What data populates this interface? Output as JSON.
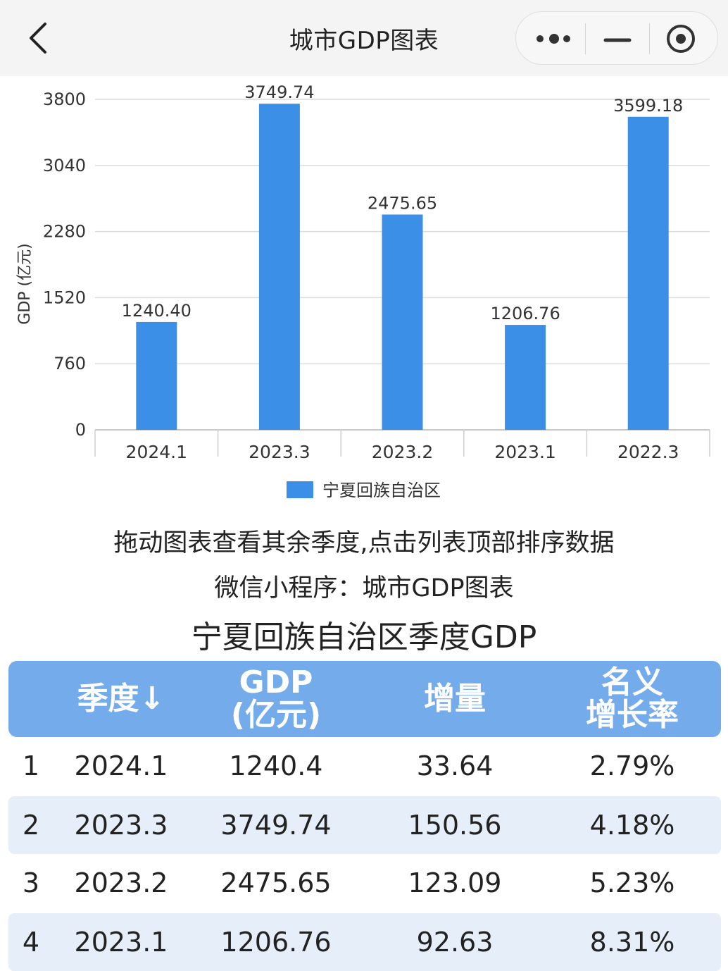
{
  "header": {
    "title": "城市GDP图表"
  },
  "chart_data": {
    "type": "bar",
    "categories": [
      "2024.1",
      "2023.3",
      "2023.2",
      "2023.1",
      "2022.3"
    ],
    "series": [
      {
        "name": "宁夏回族自治区",
        "values": [
          1240.4,
          3749.74,
          2475.65,
          1206.76,
          3599.18
        ],
        "labels": [
          "1240.40",
          "3749.74",
          "2475.65",
          "1206.76",
          "3599.18"
        ]
      }
    ],
    "ylabel": "GDP (亿元)",
    "ylim": [
      0,
      3800
    ],
    "yticks": [
      0,
      760,
      1520,
      2280,
      3040,
      3800
    ],
    "grid": true,
    "legend": "bottom-center",
    "bar_color": "#3b8fe6"
  },
  "notes": {
    "line1": "拖动图表查看其余季度,点击列表顶部排序数据",
    "line2": "微信小程序：城市GDP图表"
  },
  "table": {
    "title": "宁夏回族自治区季度GDP",
    "header_color": "#74abea",
    "columns": {
      "quarter": "季度↓",
      "gdp_l1": "GDP",
      "gdp_l2": "(亿元)",
      "increase": "增量",
      "rate_l1": "名义",
      "rate_l2": "增长率"
    },
    "rows": [
      {
        "rank": "1",
        "quarter": "2024.1",
        "gdp": "1240.4",
        "increase": "33.64",
        "rate": "2.79%"
      },
      {
        "rank": "2",
        "quarter": "2023.3",
        "gdp": "3749.74",
        "increase": "150.56",
        "rate": "4.18%"
      },
      {
        "rank": "3",
        "quarter": "2023.2",
        "gdp": "2475.65",
        "increase": "123.09",
        "rate": "5.23%"
      },
      {
        "rank": "4",
        "quarter": "2023.1",
        "gdp": "1206.76",
        "increase": "92.63",
        "rate": "8.31%"
      }
    ]
  }
}
